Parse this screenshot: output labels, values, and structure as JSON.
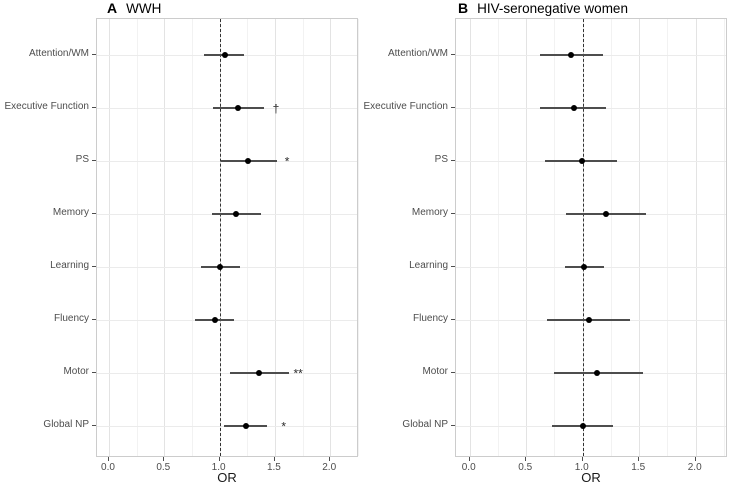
{
  "figure": {
    "kind": "two-panel forest plot",
    "shared_xlabel": "OR"
  },
  "style": {
    "background": "#ffffff",
    "point_color": "#000000",
    "ci_line_color": "#4d4d4d",
    "reference_line_color": "#333333",
    "grid_major_color": "#e3e3e3",
    "grid_minor_color": "#f2f2f2",
    "row_grid_color": "#ebebeb",
    "panel_border_color": "#cccccc",
    "axis_text_color": "#4d4d4d",
    "title_color": "#000000",
    "annotation_color": "#2b2b2b"
  },
  "chart_data": [
    {
      "type": "scatter",
      "variant": "forest-plot",
      "panel_label": "A",
      "title": "WWH",
      "xlabel": "OR",
      "xlim": [
        -0.11,
        2.26
      ],
      "x_ticks": [
        0.0,
        0.5,
        1.0,
        1.5,
        2.0
      ],
      "x_tick_labels": [
        "0.0",
        "0.5",
        "1.0",
        "1.5",
        "2.0"
      ],
      "x_minor_gridlines": [
        0.25,
        0.75,
        1.25,
        1.75,
        2.25
      ],
      "reference_line_x": 1.0,
      "grid": true,
      "legend": "none",
      "categories": [
        "Attention/WM",
        "Executive Function",
        "PS",
        "Memory",
        "Learning",
        "Fluency",
        "Motor",
        "Global NP"
      ],
      "points": [
        {
          "category": "Attention/WM",
          "or": 1.05,
          "ci_low": 0.86,
          "ci_high": 1.22,
          "sig": "",
          "sig_x": null
        },
        {
          "category": "Executive Function",
          "or": 1.17,
          "ci_low": 0.94,
          "ci_high": 1.4,
          "sig": "†",
          "sig_x": 1.51
        },
        {
          "category": "PS",
          "or": 1.26,
          "ci_low": 1.01,
          "ci_high": 1.52,
          "sig": "*",
          "sig_x": 1.61
        },
        {
          "category": "Memory",
          "or": 1.15,
          "ci_low": 0.93,
          "ci_high": 1.37,
          "sig": "",
          "sig_x": null
        },
        {
          "category": "Learning",
          "or": 1.0,
          "ci_low": 0.83,
          "ci_high": 1.18,
          "sig": "",
          "sig_x": null
        },
        {
          "category": "Fluency",
          "or": 0.96,
          "ci_low": 0.78,
          "ci_high": 1.13,
          "sig": "",
          "sig_x": null
        },
        {
          "category": "Motor",
          "or": 1.36,
          "ci_low": 1.09,
          "ci_high": 1.63,
          "sig": "**",
          "sig_x": 1.71
        },
        {
          "category": "Global NP",
          "or": 1.24,
          "ci_low": 1.04,
          "ci_high": 1.43,
          "sig": "*",
          "sig_x": 1.58
        }
      ]
    },
    {
      "type": "scatter",
      "variant": "forest-plot",
      "panel_label": "B",
      "title": "HIV-seronegative women",
      "xlabel": "OR",
      "xlim": [
        -0.12,
        2.29
      ],
      "x_ticks": [
        0.0,
        0.5,
        1.0,
        1.5,
        2.0
      ],
      "x_tick_labels": [
        "0.0",
        "0.5",
        "1.0",
        "1.5",
        "2.0"
      ],
      "x_minor_gridlines": [
        0.25,
        0.75,
        1.25,
        1.75,
        2.25
      ],
      "reference_line_x": 1.0,
      "grid": true,
      "legend": "none",
      "categories": [
        "Attention/WM",
        "Executive Function",
        "PS",
        "Memory",
        "Learning",
        "Fluency",
        "Motor",
        "Global NP"
      ],
      "points": [
        {
          "category": "Attention/WM",
          "or": 0.9,
          "ci_low": 0.62,
          "ci_high": 1.18,
          "sig": "",
          "sig_x": null
        },
        {
          "category": "Executive Function",
          "or": 0.92,
          "ci_low": 0.62,
          "ci_high": 1.21,
          "sig": "",
          "sig_x": null
        },
        {
          "category": "PS",
          "or": 0.99,
          "ci_low": 0.67,
          "ci_high": 1.3,
          "sig": "",
          "sig_x": null
        },
        {
          "category": "Memory",
          "or": 1.21,
          "ci_low": 0.85,
          "ci_high": 1.56,
          "sig": "",
          "sig_x": null
        },
        {
          "category": "Learning",
          "or": 1.01,
          "ci_low": 0.84,
          "ci_high": 1.19,
          "sig": "",
          "sig_x": null
        },
        {
          "category": "Fluency",
          "or": 1.06,
          "ci_low": 0.68,
          "ci_high": 1.42,
          "sig": "",
          "sig_x": null
        },
        {
          "category": "Motor",
          "or": 1.13,
          "ci_low": 0.75,
          "ci_high": 1.53,
          "sig": "",
          "sig_x": null
        },
        {
          "category": "Global NP",
          "or": 1.0,
          "ci_low": 0.73,
          "ci_high": 1.27,
          "sig": "",
          "sig_x": null
        }
      ]
    }
  ]
}
